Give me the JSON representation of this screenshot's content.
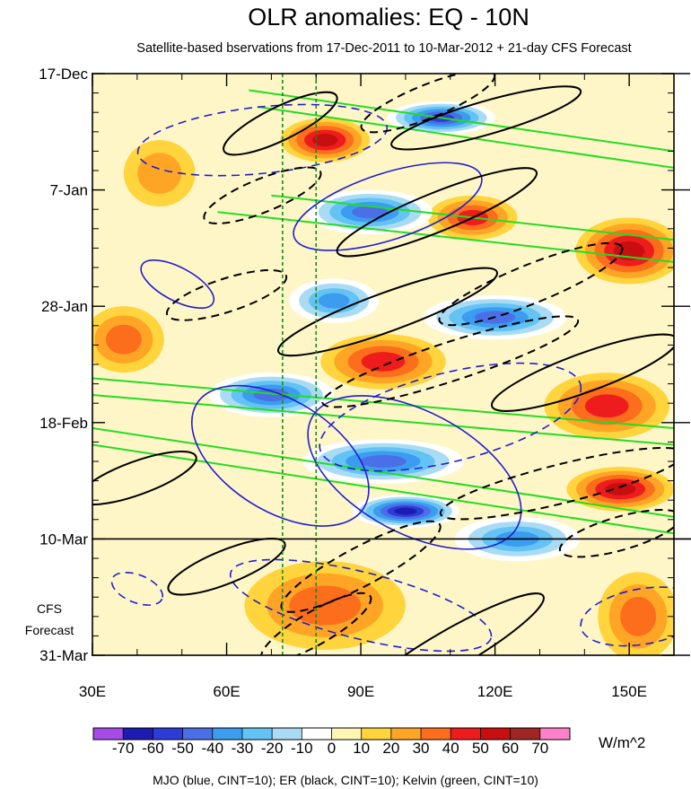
{
  "chart_data": {
    "type": "heatmap",
    "title": "OLR anomalies: EQ - 10N",
    "subtitle": "Satellite-based bservations from 17-Dec-2011 to 10-Mar-2012 + 21-day CFS Forecast",
    "x_axis": {
      "range": [
        30,
        160
      ],
      "ticks": [
        {
          "value": 30,
          "label": "30E"
        },
        {
          "value": 60,
          "label": "60E"
        },
        {
          "value": 90,
          "label": "90E"
        },
        {
          "value": 120,
          "label": "120E"
        },
        {
          "value": 150,
          "label": "150E"
        }
      ],
      "minor_ticks": [
        40,
        50,
        70,
        80,
        100,
        110,
        130,
        140
      ]
    },
    "y_axis": {
      "range_days": [
        0,
        105
      ],
      "reversed": true,
      "ticks": [
        {
          "value": 0,
          "label": "17-Dec"
        },
        {
          "value": 21,
          "label": "7-Jan"
        },
        {
          "value": 42,
          "label": "28-Jan"
        },
        {
          "value": 63,
          "label": "18-Feb"
        },
        {
          "value": 84,
          "label": "10-Mar"
        },
        {
          "value": 105,
          "label": "31-Mar"
        }
      ]
    },
    "forecast_line_day": 84,
    "forecast_label": [
      "CFS",
      "Forecast"
    ],
    "reference_longitudes": [
      72.5,
      80
    ],
    "colorbar": {
      "levels": [
        -70,
        -60,
        -50,
        -40,
        -30,
        -20,
        -10,
        0,
        10,
        20,
        30,
        40,
        50,
        60,
        70
      ],
      "labels": [
        "-70",
        "-60",
        "-50",
        "-40",
        "-30",
        "-20",
        "-10",
        "0",
        "10",
        "20",
        "30",
        "40",
        "50",
        "60",
        "70"
      ],
      "colors": [
        "#a64be8",
        "#1e1bb0",
        "#2d3cd6",
        "#4a6fe6",
        "#3c9cf0",
        "#64c3f5",
        "#a9dcf4",
        "#ffffff",
        "#fff6b4",
        "#ffd43c",
        "#ffa526",
        "#fc6d1c",
        "#ee1c1c",
        "#c80f0f",
        "#a02525",
        "#ff80c8"
      ],
      "units": "W/m^2"
    },
    "series": [
      {
        "name": "MJO",
        "color": "#1f1fd0",
        "cint": 10
      },
      {
        "name": "ER",
        "color": "#000000",
        "cint": 10
      },
      {
        "name": "Kelvin",
        "color": "#22dd22",
        "cint": 10
      }
    ],
    "features": {
      "mjo": [
        {
          "lon": 68,
          "day": 12,
          "rx": 28,
          "ry": 6,
          "rot": -6,
          "neg": true
        },
        {
          "lon": 96,
          "day": 24,
          "rx": 22,
          "ry": 6,
          "rot": -18,
          "neg": false
        },
        {
          "lon": 49,
          "day": 38,
          "rx": 9,
          "ry": 3,
          "rot": 28,
          "neg": false
        },
        {
          "lon": 110,
          "day": 62,
          "rx": 30,
          "ry": 8,
          "rot": -14,
          "neg": true
        },
        {
          "lon": 72,
          "day": 69,
          "rx": 22,
          "ry": 10,
          "rot": 32,
          "neg": false
        },
        {
          "lon": 102,
          "day": 72,
          "rx": 26,
          "ry": 11,
          "rot": 28,
          "neg": false
        },
        {
          "lon": 40,
          "day": 93,
          "rx": 6,
          "ry": 2.5,
          "rot": 22,
          "neg": true
        },
        {
          "lon": 90,
          "day": 96,
          "rx": 30,
          "ry": 6,
          "rot": 14,
          "neg": true
        },
        {
          "lon": 153,
          "day": 98,
          "rx": 14,
          "ry": 5,
          "rot": -10,
          "neg": true
        }
      ],
      "er": [
        {
          "lon": 72,
          "day": 9,
          "rx": 14,
          "ry": 3,
          "rot": -26,
          "neg": false
        },
        {
          "lon": 105,
          "day": 5,
          "rx": 16,
          "ry": 3,
          "rot": -22,
          "neg": true
        },
        {
          "lon": 118,
          "day": 8,
          "rx": 22,
          "ry": 3,
          "rot": -16,
          "neg": false
        },
        {
          "lon": 68,
          "day": 22,
          "rx": 14,
          "ry": 3,
          "rot": -22,
          "neg": true
        },
        {
          "lon": 107,
          "day": 25,
          "rx": 24,
          "ry": 3.5,
          "rot": -22,
          "neg": false
        },
        {
          "lon": 60,
          "day": 40,
          "rx": 14,
          "ry": 3,
          "rot": -18,
          "neg": true
        },
        {
          "lon": 96,
          "day": 43,
          "rx": 26,
          "ry": 3.5,
          "rot": -20,
          "neg": false
        },
        {
          "lon": 128,
          "day": 38,
          "rx": 22,
          "ry": 3.5,
          "rot": -22,
          "neg": true
        },
        {
          "lon": 110,
          "day": 52,
          "rx": 30,
          "ry": 3.5,
          "rot": -18,
          "neg": true
        },
        {
          "lon": 140,
          "day": 54,
          "rx": 22,
          "ry": 3.5,
          "rot": -20,
          "neg": false
        },
        {
          "lon": 135,
          "day": 74,
          "rx": 28,
          "ry": 3.5,
          "rot": -14,
          "neg": true
        },
        {
          "lon": 40,
          "day": 73,
          "rx": 14,
          "ry": 3,
          "rot": -20,
          "neg": false
        },
        {
          "lon": 60,
          "day": 89,
          "rx": 14,
          "ry": 3,
          "rot": -22,
          "neg": false
        },
        {
          "lon": 90,
          "day": 89,
          "rx": 20,
          "ry": 3.5,
          "rot": -28,
          "neg": true
        },
        {
          "lon": 148,
          "day": 83,
          "rx": 14,
          "ry": 3,
          "rot": -16,
          "neg": true
        },
        {
          "lon": 110,
          "day": 104,
          "rx": 24,
          "ry": 3.5,
          "rot": -30,
          "neg": false
        },
        {
          "lon": 80,
          "day": 100,
          "rx": 14,
          "ry": 3,
          "rot": -30,
          "neg": true
        }
      ],
      "kelvin": [
        {
          "lon1": 65,
          "day1": 3,
          "lon2": 160,
          "day2": 14
        },
        {
          "lon1": 67,
          "day1": 6,
          "lon2": 160,
          "day2": 17
        },
        {
          "lon1": 70,
          "day1": 22,
          "lon2": 160,
          "day2": 30
        },
        {
          "lon1": 58,
          "day1": 25,
          "lon2": 160,
          "day2": 34
        },
        {
          "lon1": 30,
          "day1": 55,
          "lon2": 160,
          "day2": 64
        },
        {
          "lon1": 30,
          "day1": 58,
          "lon2": 160,
          "day2": 67
        },
        {
          "lon1": 30,
          "day1": 64,
          "lon2": 160,
          "day2": 80
        },
        {
          "lon1": 30,
          "day1": 67,
          "lon2": 160,
          "day2": 83
        }
      ],
      "warm_blobs": [
        {
          "lon": 82,
          "day": 12,
          "rx": 10,
          "ry": 4,
          "value": 45
        },
        {
          "lon": 115,
          "day": 26,
          "rx": 10,
          "ry": 4,
          "value": 40
        },
        {
          "lon": 150,
          "day": 32,
          "rx": 12,
          "ry": 6,
          "value": 45
        },
        {
          "lon": 37,
          "day": 48,
          "rx": 9,
          "ry": 6,
          "value": 30
        },
        {
          "lon": 95,
          "day": 52,
          "rx": 14,
          "ry": 5,
          "value": 35
        },
        {
          "lon": 145,
          "day": 60,
          "rx": 14,
          "ry": 6,
          "value": 40
        },
        {
          "lon": 148,
          "day": 75,
          "rx": 12,
          "ry": 4,
          "value": 50
        },
        {
          "lon": 82,
          "day": 96,
          "rx": 18,
          "ry": 8,
          "value": 30
        },
        {
          "lon": 152,
          "day": 98,
          "rx": 9,
          "ry": 8,
          "value": 30
        },
        {
          "lon": 45,
          "day": 18,
          "rx": 8,
          "ry": 6,
          "value": 20
        }
      ],
      "cold_blobs": [
        {
          "lon": 108,
          "day": 8,
          "rx": 12,
          "ry": 3,
          "value": -55
        },
        {
          "lon": 92,
          "day": 25,
          "rx": 14,
          "ry": 4,
          "value": -45
        },
        {
          "lon": 84,
          "day": 41,
          "rx": 10,
          "ry": 4,
          "value": -40
        },
        {
          "lon": 120,
          "day": 44,
          "rx": 16,
          "ry": 4,
          "value": -45
        },
        {
          "lon": 70,
          "day": 58,
          "rx": 14,
          "ry": 4,
          "value": -45
        },
        {
          "lon": 95,
          "day": 70,
          "rx": 18,
          "ry": 4,
          "value": -50
        },
        {
          "lon": 100,
          "day": 79,
          "rx": 12,
          "ry": 3,
          "value": -65
        },
        {
          "lon": 125,
          "day": 84,
          "rx": 14,
          "ry": 4,
          "value": -40
        }
      ]
    }
  },
  "footer": {
    "legend_text": "MJO (blue, CINT=10); ER (black, CINT=10); Kelvin (green, CINT=10)"
  }
}
